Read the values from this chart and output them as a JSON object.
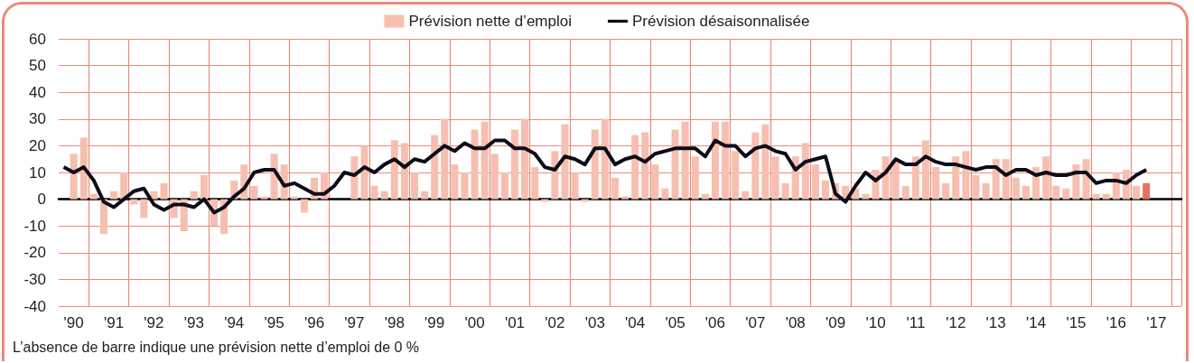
{
  "chart_data": {
    "type": "bar",
    "categories": [
      null,
      "'90",
      null,
      null,
      null,
      "'91",
      null,
      null,
      null,
      "'92",
      null,
      null,
      null,
      "'93",
      null,
      null,
      null,
      "'94",
      null,
      null,
      null,
      "'95",
      null,
      null,
      null,
      "'96",
      null,
      null,
      null,
      "'97",
      null,
      null,
      null,
      "'98",
      null,
      null,
      null,
      "'99",
      null,
      null,
      null,
      "'00",
      null,
      null,
      null,
      "'01",
      null,
      null,
      null,
      "'02",
      null,
      null,
      null,
      "'03",
      null,
      null,
      null,
      "'04",
      null,
      null,
      null,
      "'05",
      null,
      null,
      null,
      "'06",
      null,
      null,
      null,
      "'07",
      null,
      null,
      null,
      "'08",
      null,
      null,
      null,
      "'09",
      null,
      null,
      null,
      "'10",
      null,
      null,
      null,
      "'11",
      null,
      null,
      null,
      "'12",
      null,
      null,
      null,
      "'13",
      null,
      null,
      null,
      "'14",
      null,
      null,
      null,
      "'15",
      null,
      null,
      null,
      "'16",
      null,
      null,
      null,
      "'17",
      null,
      null
    ],
    "series": [
      {
        "name": "Prévision nette d’emploi",
        "color": "#f6bfb0",
        "colors": [
          "#f6bfb0",
          "#f6bfb0",
          "#f6bfb0",
          "#f6bfb0",
          "#f6bfb0",
          "#f6bfb0",
          "#f6bfb0",
          "#f6bfb0",
          "#f6bfb0",
          "#f6bfb0",
          "#f6bfb0",
          "#f6bfb0",
          "#f6bfb0",
          "#f6bfb0",
          "#f6bfb0",
          "#f6bfb0",
          "#f6bfb0",
          "#f6bfb0",
          "#f6bfb0",
          "#f6bfb0",
          "#f6bfb0",
          "#f6bfb0",
          "#f6bfb0",
          "#f6bfb0",
          "#f6bfb0",
          "#f6bfb0",
          "#f6bfb0",
          "#f6bfb0",
          "#f6bfb0",
          "#f6bfb0",
          "#f6bfb0",
          "#f6bfb0",
          "#f6bfb0",
          "#f6bfb0",
          "#f6bfb0",
          "#f6bfb0",
          "#f6bfb0",
          "#f6bfb0",
          "#f6bfb0",
          "#f6bfb0",
          "#f6bfb0",
          "#f6bfb0",
          "#f6bfb0",
          "#f6bfb0",
          "#f6bfb0",
          "#f6bfb0",
          "#f6bfb0",
          "#f6bfb0",
          "#f6bfb0",
          "#f6bfb0",
          "#f6bfb0",
          "#f6bfb0",
          "#f6bfb0",
          "#f6bfb0",
          "#f6bfb0",
          "#f6bfb0",
          "#f6bfb0",
          "#f6bfb0",
          "#f6bfb0",
          "#f6bfb0",
          "#f6bfb0",
          "#f6bfb0",
          "#f6bfb0",
          "#f6bfb0",
          "#f6bfb0",
          "#f6bfb0",
          "#f6bfb0",
          "#f6bfb0",
          "#f6bfb0",
          "#f6bfb0",
          "#f6bfb0",
          "#f6bfb0",
          "#f6bfb0",
          "#f6bfb0",
          "#f6bfb0",
          "#f6bfb0",
          "#f6bfb0",
          "#f6bfb0",
          "#f6bfb0",
          "#f6bfb0",
          "#f6bfb0",
          "#f6bfb0",
          "#f6bfb0",
          "#f6bfb0",
          "#f6bfb0",
          "#f6bfb0",
          "#f6bfb0",
          "#f6bfb0",
          "#f6bfb0",
          "#f6bfb0",
          "#f6bfb0",
          "#f6bfb0",
          "#f6bfb0",
          "#f6bfb0",
          "#f6bfb0",
          "#f6bfb0",
          "#f6bfb0",
          "#f6bfb0",
          "#f6bfb0",
          "#f6bfb0",
          "#f6bfb0",
          "#f6bfb0",
          "#f6bfb0",
          "#f6bfb0",
          "#f6bfb0",
          "#f6bfb0",
          "#f6bfb0",
          "#f6bfb0",
          "#e8705c",
          "#f6bfb0",
          "#f6bfb0",
          "#f6bfb0"
        ],
        "values": [
          0,
          17,
          23,
          2,
          -13,
          3,
          10,
          -2,
          -7,
          3,
          6,
          -7,
          -12,
          3,
          9,
          -10,
          -13,
          7,
          13,
          5,
          1,
          17,
          13,
          1,
          -5,
          8,
          10,
          0,
          0,
          16,
          20,
          5,
          3,
          22,
          21,
          10,
          3,
          24,
          30,
          13,
          10,
          26,
          29,
          17,
          10,
          26,
          30,
          12,
          -1,
          18,
          28,
          10,
          -1,
          26,
          30,
          8,
          1,
          24,
          25,
          13,
          4,
          26,
          29,
          16,
          2,
          29,
          29,
          18,
          3,
          25,
          28,
          16,
          6,
          16,
          21,
          13,
          7,
          6,
          5,
          4,
          2,
          11,
          16,
          14,
          5,
          16,
          22,
          12,
          6,
          16,
          18,
          9,
          6,
          15,
          15,
          8,
          5,
          12,
          16,
          5,
          4,
          13,
          15,
          2,
          2,
          10,
          11,
          5,
          6,
          null,
          null,
          null
        ]
      },
      {
        "name": "Prévision désaisonnalisée",
        "type": "line",
        "color": "#0d0d1a",
        "values": [
          12,
          10,
          12,
          7,
          -1,
          -3,
          0,
          3,
          4,
          -2,
          -4,
          -2,
          -2,
          -3,
          0,
          -5,
          -3,
          1,
          4,
          10,
          11,
          11,
          5,
          6,
          4,
          2,
          2,
          5,
          10,
          9,
          12,
          10,
          13,
          15,
          12,
          15,
          14,
          17,
          20,
          18,
          21,
          19,
          19,
          22,
          22,
          19,
          19,
          17,
          12,
          11,
          16,
          15,
          13,
          19,
          19,
          13,
          15,
          16,
          14,
          17,
          18,
          19,
          19,
          19,
          16,
          22,
          20,
          20,
          16,
          19,
          20,
          18,
          17,
          11,
          14,
          15,
          16,
          2,
          -1,
          5,
          10,
          7,
          10,
          15,
          13,
          13,
          16,
          14,
          13,
          13,
          12,
          11,
          12,
          12,
          9,
          11,
          11,
          9,
          10,
          9,
          9,
          10,
          10,
          6,
          7,
          7,
          6,
          9,
          11,
          null,
          null,
          null
        ]
      }
    ],
    "ylim": [
      -40,
      60
    ],
    "yticks": [
      -40,
      -30,
      -20,
      -10,
      0,
      10,
      20,
      30,
      40,
      50,
      60
    ],
    "grid": true,
    "legend": "top",
    "marker": "none",
    "annotations": [
      "L’absence de barre indique une prévision nette d’emploi de 0 %"
    ]
  }
}
